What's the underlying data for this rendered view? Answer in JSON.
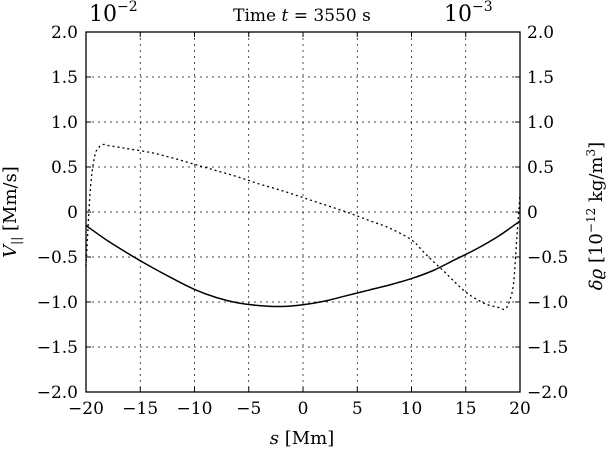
{
  "chart_data": {
    "type": "line",
    "title": "Time t = 3550 s",
    "title_prefix": "Time ",
    "title_var": "t",
    "title_suffix": " = 3550 s",
    "left_scale_factor": {
      "base": "10",
      "exp": "−2"
    },
    "right_scale_factor": {
      "base": "10",
      "exp": "−3"
    },
    "xlabel": {
      "var": "s",
      "unit": " [Mm]"
    },
    "ylabel_left": {
      "var": "V",
      "sub": "||",
      "unit": " [Mm/s]"
    },
    "ylabel_right": {
      "var": "δϱ",
      "unit_pre": " [10",
      "unit_exp": "−12",
      "unit_mid": " kg/m",
      "unit_exp2": "3",
      "unit_post": "]"
    },
    "xlim": [
      -20,
      20
    ],
    "ylim": [
      -2.0,
      2.0
    ],
    "y2lim": [
      -2.0,
      2.0
    ],
    "x_ticks": [
      -20,
      -15,
      -10,
      -5,
      0,
      5,
      10,
      15,
      20
    ],
    "x_tick_labels": [
      "−20",
      "−15",
      "−10",
      "−5",
      "0",
      "5",
      "10",
      "15",
      "20"
    ],
    "y_ticks": [
      -2.0,
      -1.5,
      -1.0,
      -0.5,
      0,
      0.5,
      1.0,
      1.5,
      2.0
    ],
    "y_tick_labels": [
      "−2.0",
      "−1.5",
      "−1.0",
      "−0.5",
      "0",
      "0.5",
      "1.0",
      "1.5",
      "2.0"
    ],
    "y2_tick_labels": [
      "−2.0",
      "−1.5",
      "−1.0",
      "−0.5",
      "0",
      "0.5",
      "1.0",
      "1.5",
      "2.0"
    ],
    "grid": true,
    "grid_color": "#000000",
    "series": [
      {
        "axis": "left",
        "style": "solid",
        "color": "#000000",
        "x": [
          -20,
          -18,
          -16,
          -14,
          -12,
          -10,
          -8,
          -6,
          -4,
          -2,
          0,
          2,
          4,
          6,
          8,
          10,
          12,
          14,
          16,
          18,
          20
        ],
        "y": [
          -0.15,
          -0.32,
          -0.47,
          -0.61,
          -0.74,
          -0.86,
          -0.95,
          -1.01,
          -1.04,
          -1.05,
          -1.03,
          -0.99,
          -0.93,
          -0.87,
          -0.81,
          -0.74,
          -0.65,
          -0.53,
          -0.41,
          -0.27,
          -0.1
        ]
      },
      {
        "axis": "right",
        "style": "dotted",
        "color": "#000000",
        "x": [
          -20,
          -19.6,
          -19.2,
          -18.8,
          -18.4,
          -18,
          -17,
          -16,
          -14,
          -12,
          -10,
          -8,
          -6,
          -4,
          -2,
          0,
          2,
          4,
          6,
          8,
          10,
          11,
          12,
          13,
          14,
          15,
          16,
          17,
          18,
          18.6,
          19,
          19.4,
          19.7,
          20
        ],
        "y": [
          -0.6,
          0.25,
          0.62,
          0.72,
          0.75,
          0.74,
          0.72,
          0.7,
          0.66,
          0.6,
          0.53,
          0.46,
          0.39,
          0.31,
          0.24,
          0.16,
          0.08,
          0.0,
          -0.09,
          -0.18,
          -0.31,
          -0.43,
          -0.55,
          -0.66,
          -0.78,
          -0.89,
          -0.97,
          -1.03,
          -1.06,
          -1.08,
          -1.0,
          -0.8,
          -0.3,
          0.2
        ]
      }
    ]
  }
}
